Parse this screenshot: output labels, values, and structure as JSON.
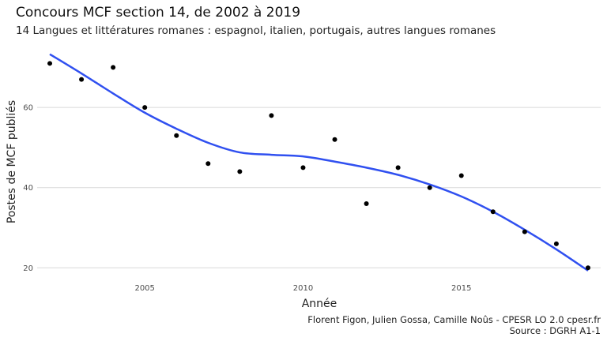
{
  "title": "Concours MCF section 14, de 2002 à 2019",
  "subtitle": "14 Langues et littératures romanes : espagnol, italien, portugais, autres langues romanes",
  "caption_line1": "Florent Figon, Julien Gossa, Camille Noûs - CPESR LO 2.0 cpesr.fr",
  "caption_line2": "Source : DGRH A1-1",
  "colors": {
    "points": "#000000",
    "smooth_line": "#3050f0",
    "grid": "#d9d9d9"
  },
  "chart_data": {
    "type": "scatter",
    "xlabel": "Année",
    "ylabel": "Postes de MCF publiés",
    "xlim": [
      2001.6,
      2019.4
    ],
    "ylim": [
      17.5,
      75
    ],
    "x_ticks": [
      2005,
      2010,
      2015
    ],
    "y_ticks": [
      20,
      40,
      60
    ],
    "grid": "horizontal major",
    "legend": "none",
    "points": [
      {
        "x": 2002,
        "y": 71
      },
      {
        "x": 2003,
        "y": 67
      },
      {
        "x": 2004,
        "y": 70
      },
      {
        "x": 2005,
        "y": 60
      },
      {
        "x": 2006,
        "y": 53
      },
      {
        "x": 2007,
        "y": 46
      },
      {
        "x": 2008,
        "y": 44
      },
      {
        "x": 2009,
        "y": 58
      },
      {
        "x": 2010,
        "y": 45
      },
      {
        "x": 2011,
        "y": 52
      },
      {
        "x": 2012,
        "y": 36
      },
      {
        "x": 2013,
        "y": 45
      },
      {
        "x": 2014,
        "y": 40
      },
      {
        "x": 2015,
        "y": 43
      },
      {
        "x": 2016,
        "y": 34
      },
      {
        "x": 2017,
        "y": 29
      },
      {
        "x": 2018,
        "y": 26
      },
      {
        "x": 2019,
        "y": 20
      }
    ],
    "smooth": [
      {
        "x": 2002,
        "y": 73.3
      },
      {
        "x": 2003,
        "y": 68.5
      },
      {
        "x": 2004,
        "y": 63.5
      },
      {
        "x": 2005,
        "y": 58.7
      },
      {
        "x": 2006,
        "y": 54.7
      },
      {
        "x": 2007,
        "y": 51.2
      },
      {
        "x": 2008,
        "y": 48.8
      },
      {
        "x": 2009,
        "y": 48.2
      },
      {
        "x": 2010,
        "y": 47.8
      },
      {
        "x": 2011,
        "y": 46.5
      },
      {
        "x": 2012,
        "y": 45.0
      },
      {
        "x": 2013,
        "y": 43.2
      },
      {
        "x": 2014,
        "y": 40.8
      },
      {
        "x": 2015,
        "y": 37.8
      },
      {
        "x": 2016,
        "y": 34.0
      },
      {
        "x": 2017,
        "y": 29.5
      },
      {
        "x": 2018,
        "y": 24.6
      },
      {
        "x": 2019,
        "y": 19.3
      }
    ]
  }
}
